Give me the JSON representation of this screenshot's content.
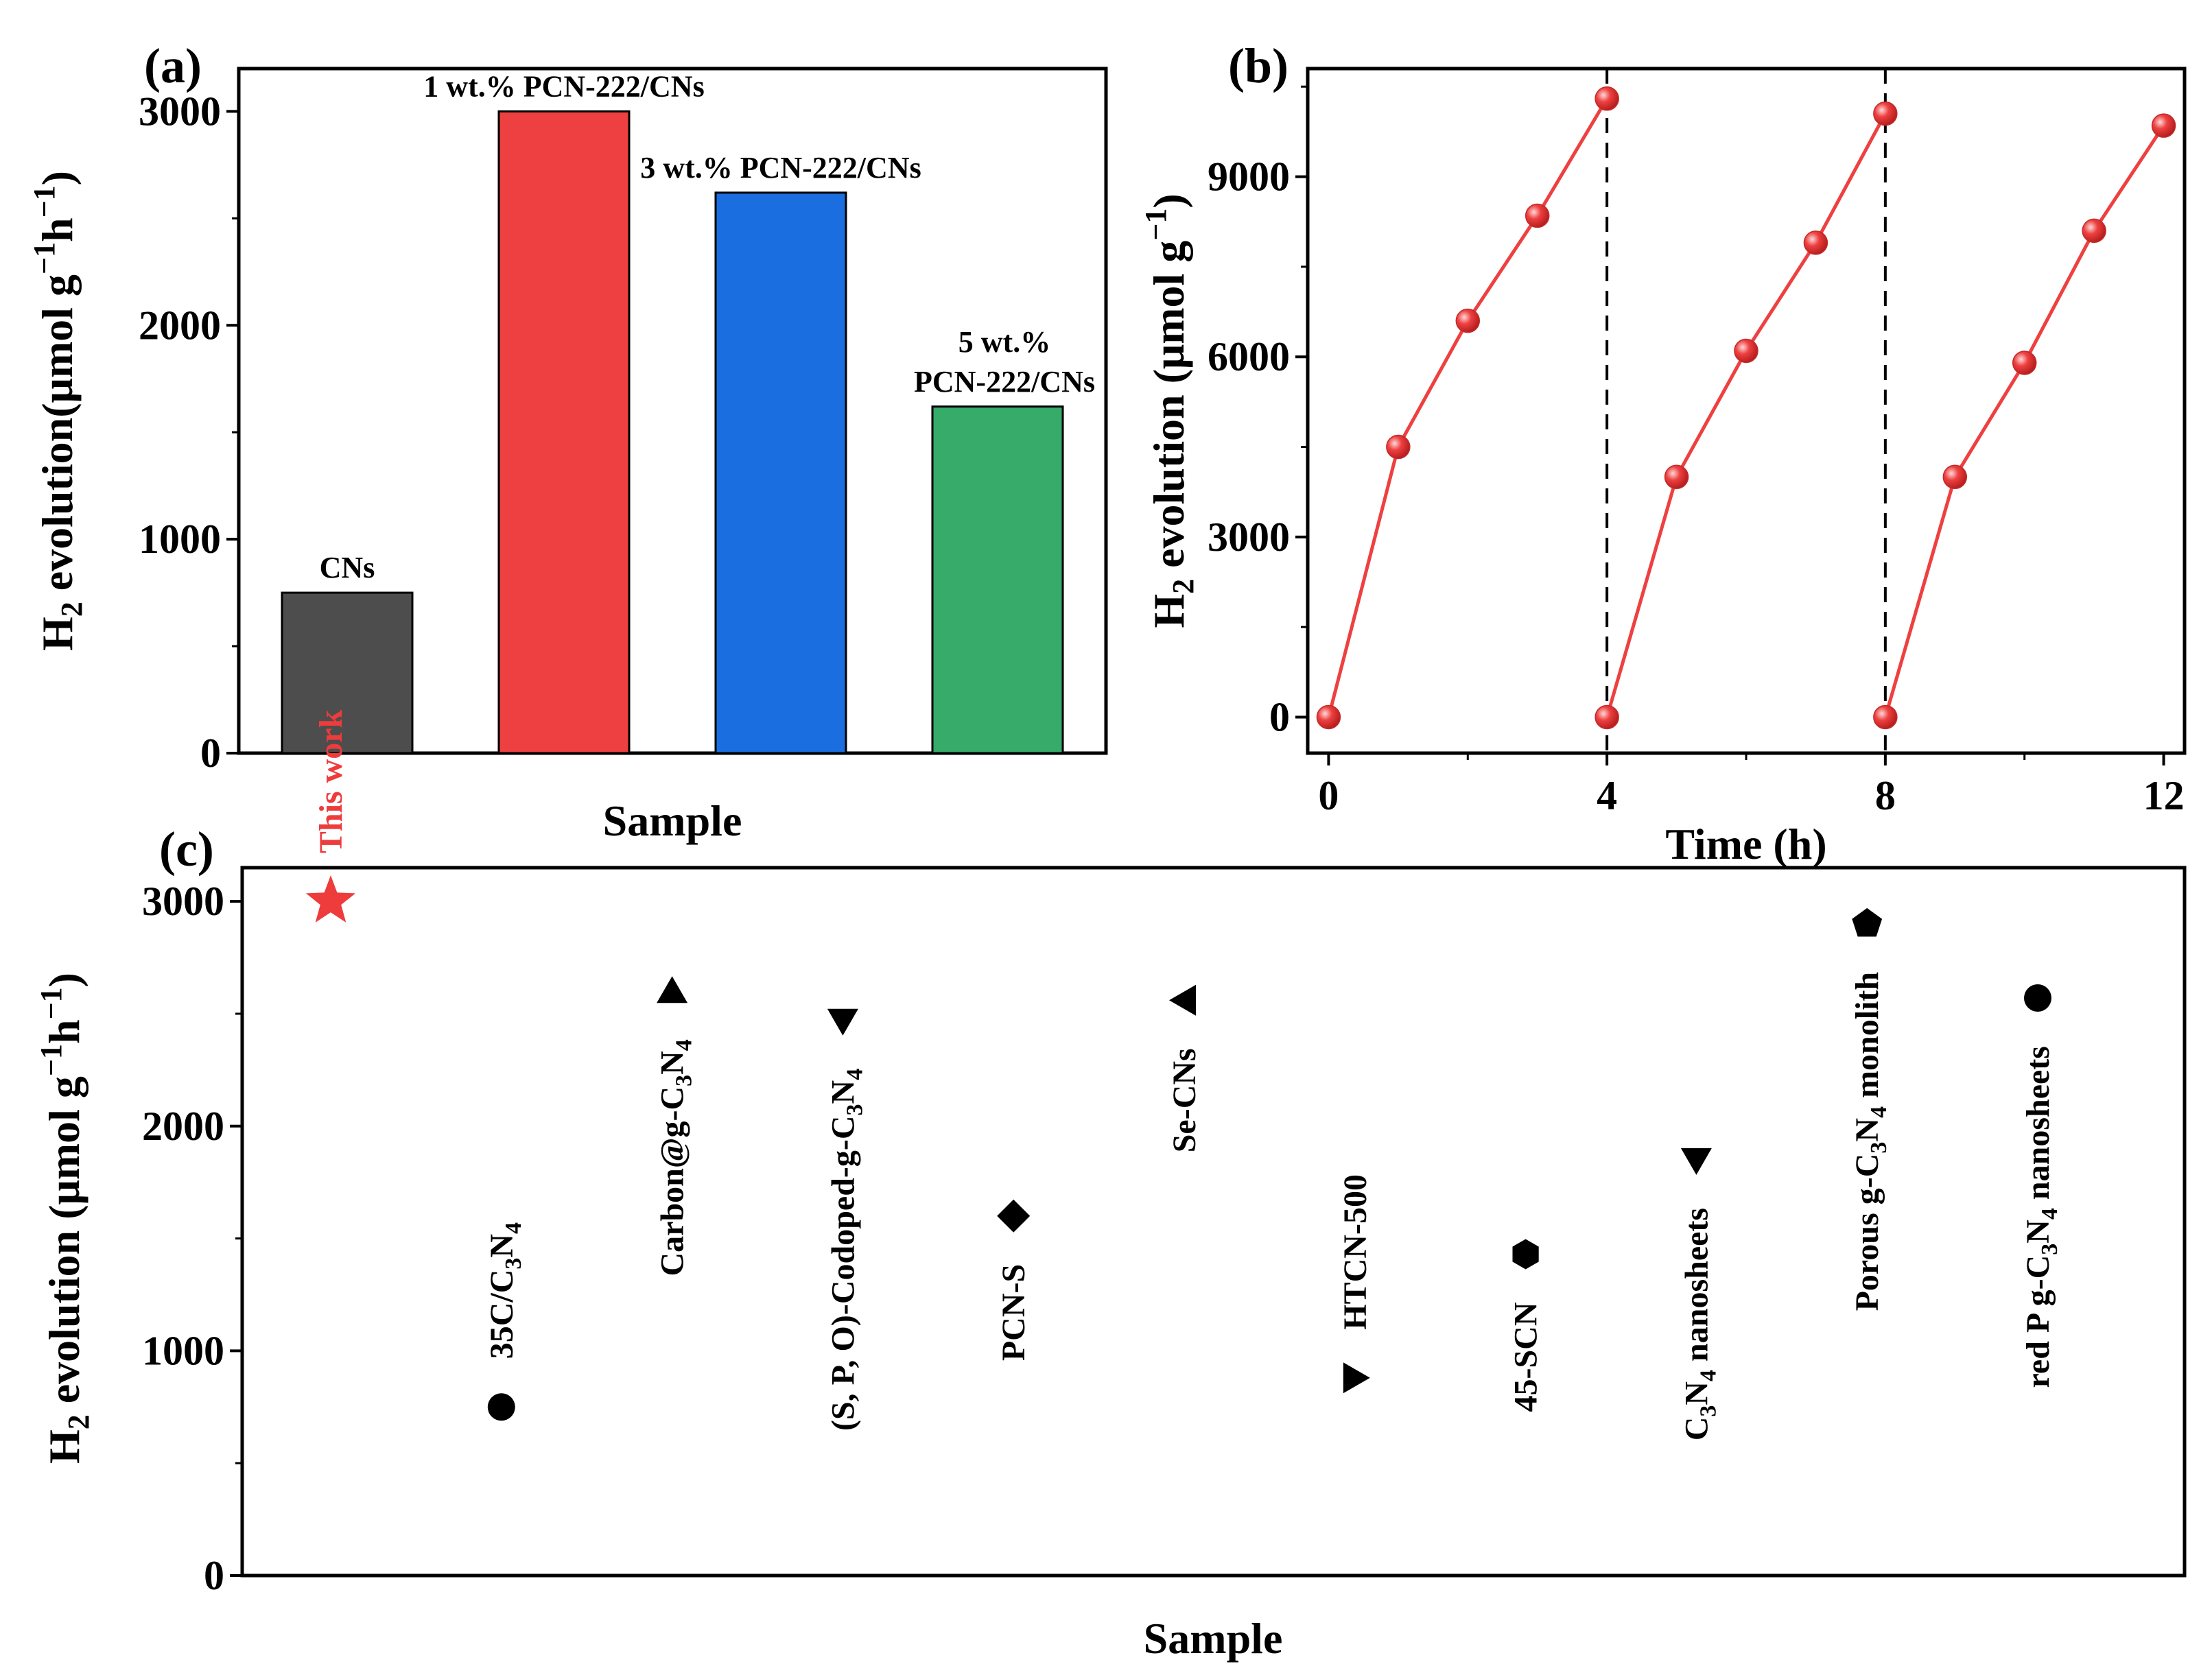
{
  "chart_data": [
    {
      "panel": "(a)",
      "type": "bar",
      "xlabel": "Sample",
      "ylabel_parts": [
        "H",
        "2",
        " evolution(μmol g",
        "−1",
        "h",
        "−1",
        ")"
      ],
      "ylim": [
        0,
        3200
      ],
      "yticks": [
        0,
        1000,
        2000,
        3000
      ],
      "categories": [
        "CNs",
        "1 wt.% PCN-222/CNs",
        "3 wt.% PCN-222/CNs",
        "5 wt.% PCN-222/CNs"
      ],
      "label_lines": [
        [
          "CNs"
        ],
        [
          "1 wt.% PCN-222/CNs"
        ],
        [
          "3 wt.% PCN-222/CNs"
        ],
        [
          "5 wt.%",
          "PCN-222/CNs"
        ]
      ],
      "values": [
        750,
        3000,
        2620,
        1620
      ],
      "colors": [
        "#4d4d4d",
        "#ee4040",
        "#1a6ee0",
        "#36ab6a"
      ]
    },
    {
      "panel": "(b)",
      "type": "line",
      "xlabel": "Time (h)",
      "ylabel_parts": [
        "H",
        "2",
        " evolution (μmol g",
        "−1",
        ")"
      ],
      "xlim": [
        -0.3,
        12.3
      ],
      "ylim": [
        -600,
        10800
      ],
      "xticks": [
        0,
        4,
        8,
        12
      ],
      "yticks": [
        0,
        3000,
        6000,
        9000
      ],
      "color": "#ee4040",
      "cycle_dividers": [
        4,
        8
      ],
      "cycles": [
        {
          "x": [
            0,
            1,
            2,
            3,
            4
          ],
          "y": [
            0,
            4500,
            6600,
            8350,
            10300
          ]
        },
        {
          "x": [
            4,
            5,
            6,
            7,
            8
          ],
          "y": [
            0,
            4000,
            6100,
            7900,
            10050
          ]
        },
        {
          "x": [
            8,
            9,
            10,
            11,
            12
          ],
          "y": [
            0,
            4000,
            5900,
            8100,
            9850
          ]
        }
      ]
    },
    {
      "panel": "(c)",
      "type": "scatter",
      "xlabel": "Sample",
      "ylabel_parts": [
        "H",
        "2",
        " evolution (μmol g",
        "−1",
        "h",
        "−1",
        ")"
      ],
      "ylim": [
        0,
        3150
      ],
      "yticks": [
        0,
        1000,
        2000,
        3000
      ],
      "points": [
        {
          "label": "This work",
          "value": 3000,
          "marker": "star",
          "color": "#ee3b3b",
          "label_parts": [
            [
              "This work",
              ""
            ]
          ]
        },
        {
          "label": "35C/C3N4",
          "value": 750,
          "marker": "circle",
          "color": "#000000",
          "label_parts": [
            [
              "35C/C",
              ""
            ],
            [
              "3",
              "sub"
            ],
            [
              "N",
              ""
            ],
            [
              "4",
              "sub"
            ]
          ]
        },
        {
          "label": "Carbon@g-C3N4",
          "value": 2600,
          "marker": "triangle-up",
          "color": "#000000",
          "label_parts": [
            [
              "Carbon@g-C",
              ""
            ],
            [
              "3",
              "sub"
            ],
            [
              "N",
              ""
            ],
            [
              "4",
              "sub"
            ]
          ]
        },
        {
          "label": "(S, P, O)-Codoped-g-C3N4",
          "value": 2470,
          "marker": "triangle-down",
          "color": "#000000",
          "label_parts": [
            [
              "(S, P, O)-Codoped-g-C",
              ""
            ],
            [
              "3",
              "sub"
            ],
            [
              "N",
              ""
            ],
            [
              "4",
              "sub"
            ]
          ]
        },
        {
          "label": "PCN-S",
          "value": 1600,
          "marker": "diamond",
          "color": "#000000",
          "label_parts": [
            [
              "PCN-S",
              ""
            ]
          ]
        },
        {
          "label": "Se-CNs",
          "value": 2560,
          "marker": "triangle-left",
          "color": "#000000",
          "label_parts": [
            [
              "Se-CNs",
              ""
            ]
          ]
        },
        {
          "label": "HTCN-500",
          "value": 880,
          "marker": "triangle-right",
          "color": "#000000",
          "label_parts": [
            [
              "HTCN-500",
              ""
            ]
          ]
        },
        {
          "label": "45-SCN",
          "value": 1430,
          "marker": "hexagon",
          "color": "#000000",
          "label_parts": [
            [
              "45-SCN",
              ""
            ]
          ]
        },
        {
          "label": "C3N4 nanosheets",
          "value": 1850,
          "marker": "triangle-down",
          "color": "#000000",
          "label_parts": [
            [
              "C",
              ""
            ],
            [
              "3",
              "sub"
            ],
            [
              "N",
              ""
            ],
            [
              "4",
              "sub"
            ],
            [
              " nanosheets",
              ""
            ]
          ]
        },
        {
          "label": "Porous g-C3N4 monolith",
          "value": 2900,
          "marker": "pentagon",
          "color": "#000000",
          "label_parts": [
            [
              "Porous g-C",
              ""
            ],
            [
              "3",
              "sub"
            ],
            [
              "N",
              ""
            ],
            [
              "4",
              "sub"
            ],
            [
              " monolith",
              ""
            ]
          ]
        },
        {
          "label": "red P g-C3N4 nanosheets",
          "value": 2570,
          "marker": "circle",
          "color": "#000000",
          "label_parts": [
            [
              "red P g-C",
              ""
            ],
            [
              "3",
              "sub"
            ],
            [
              "N",
              ""
            ],
            [
              "4",
              "sub"
            ],
            [
              " nanosheets",
              ""
            ]
          ]
        }
      ]
    }
  ]
}
